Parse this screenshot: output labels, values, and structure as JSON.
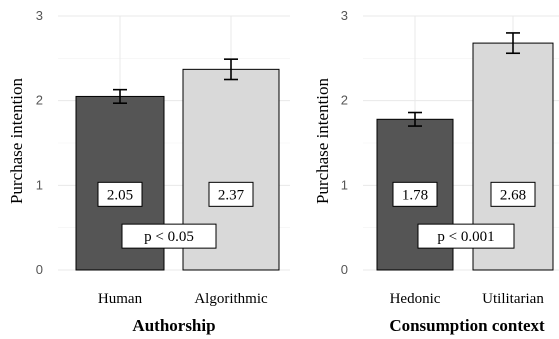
{
  "chart_data": [
    {
      "type": "bar",
      "categories": [
        "Human",
        "Algorithmic"
      ],
      "values": [
        2.05,
        2.37
      ],
      "errors": [
        0.08,
        0.12
      ],
      "value_labels": [
        "2.05",
        "2.37"
      ],
      "annotation": "p < 0.05",
      "xlabel": "Authorship",
      "ylabel": "Purchase intention",
      "ylim": [
        0,
        3
      ],
      "yticks": [
        "0",
        "1",
        "2",
        "3"
      ],
      "bar_colors": [
        "#555555",
        "#d9d9d9"
      ],
      "grid": true
    },
    {
      "type": "bar",
      "categories": [
        "Hedonic",
        "Utilitarian"
      ],
      "values": [
        1.78,
        2.68
      ],
      "errors": [
        0.08,
        0.12
      ],
      "value_labels": [
        "1.78",
        "2.68"
      ],
      "annotation": "p < 0.001",
      "xlabel": "Consumption context",
      "ylabel": "Purchase intention",
      "ylim": [
        0,
        3
      ],
      "yticks": [
        "0",
        "1",
        "2",
        "3"
      ],
      "bar_colors": [
        "#555555",
        "#d9d9d9"
      ],
      "grid": true
    }
  ]
}
